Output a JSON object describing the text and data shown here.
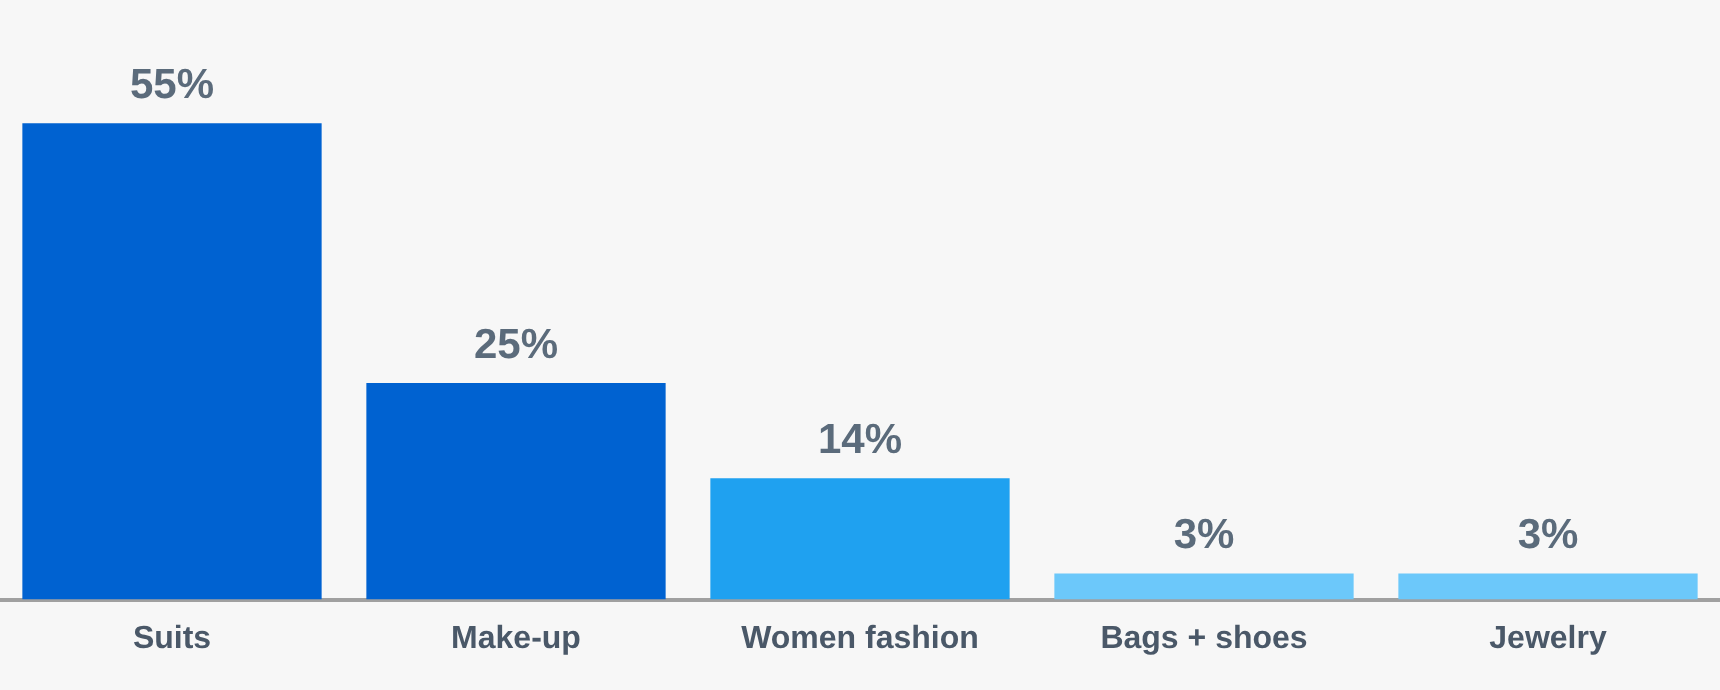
{
  "chart_data": {
    "type": "bar",
    "categories": [
      "Suits",
      "Make-up",
      "Women fashion",
      "Bags + shoes",
      "Jewelry"
    ],
    "values": [
      55,
      25,
      14,
      3,
      3
    ],
    "colors": [
      "#0062d1",
      "#0062d1",
      "#1fa1f0",
      "#6cc8fa",
      "#6cc8fa"
    ],
    "value_labels": [
      "55%",
      "25%",
      "14%",
      "3%",
      "3%"
    ],
    "grid": false,
    "legend": false
  }
}
